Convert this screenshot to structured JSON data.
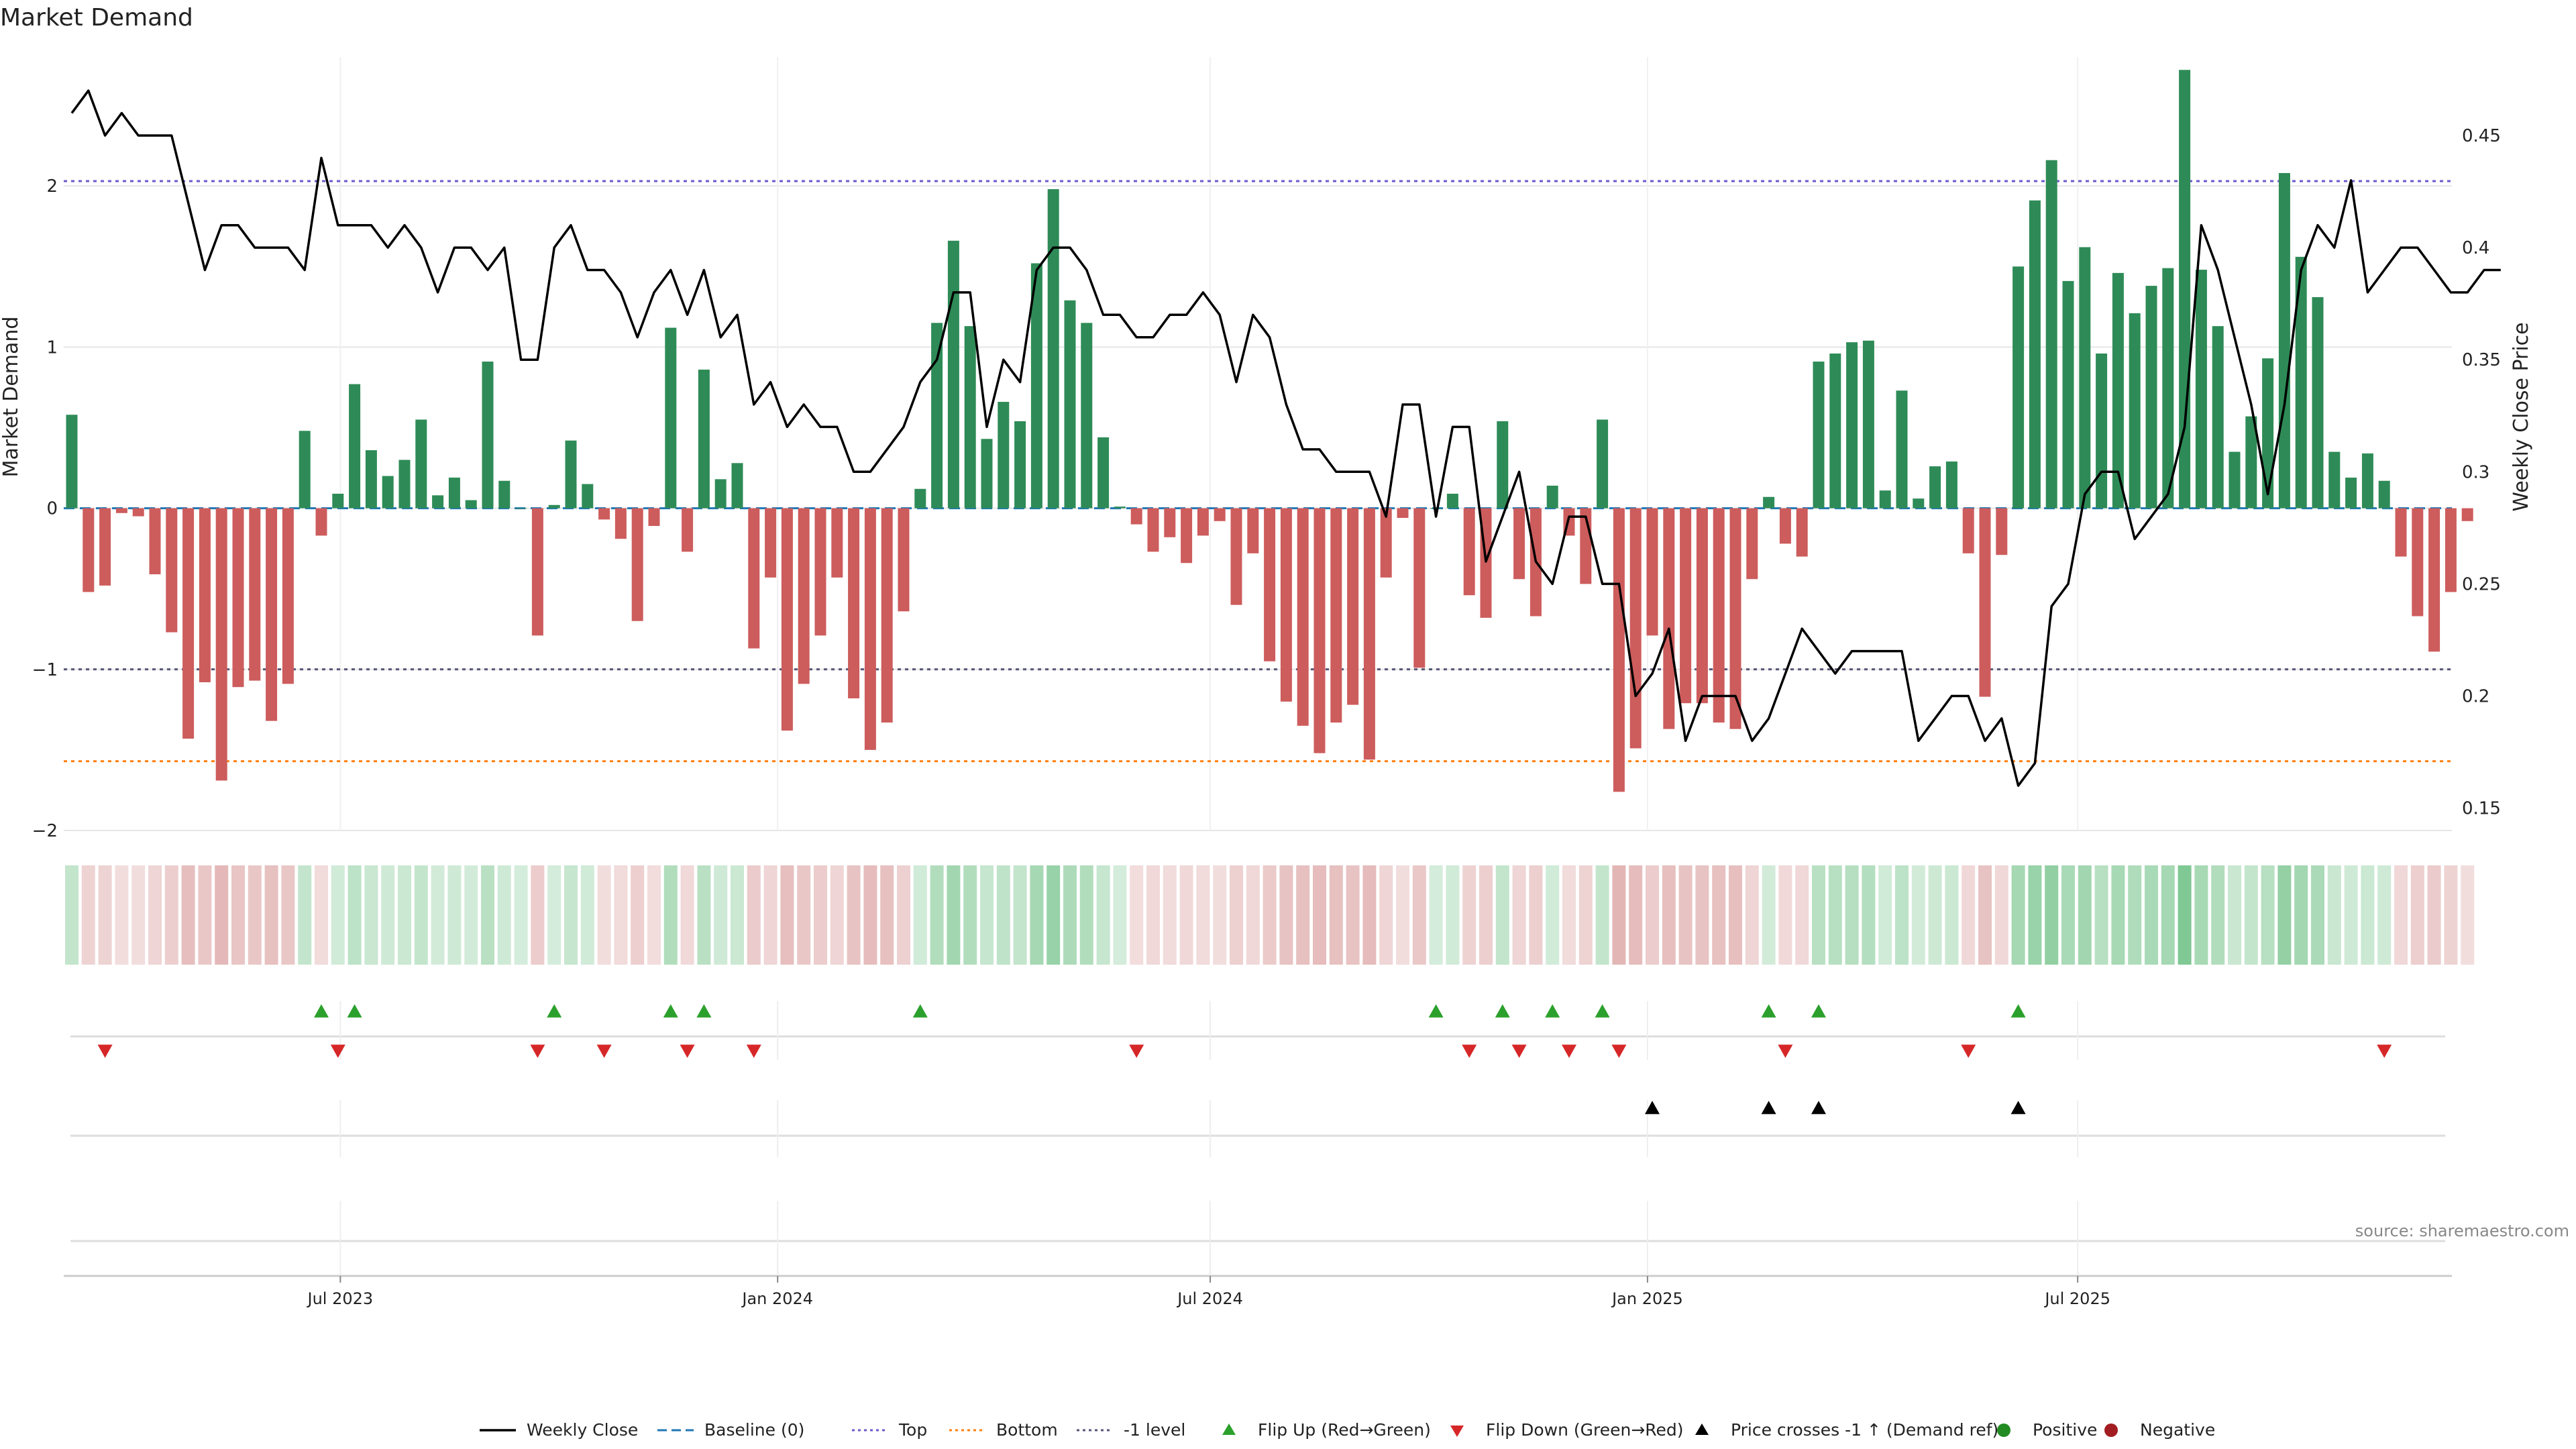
{
  "chart_data": {
    "type": "bar",
    "title": "Market Demand",
    "ylabel": "Market Demand",
    "y2label": "Weekly Close Price",
    "ylim": [
      -2.0,
      2.8
    ],
    "y2lim": [
      0.14,
      0.485
    ],
    "yticks": [
      -2,
      -1,
      0,
      1,
      2
    ],
    "y2ticks": [
      0.15,
      0.2,
      0.25,
      0.3,
      0.35,
      0.4,
      0.45
    ],
    "xstart": "2023-03-10",
    "week_days": 7,
    "xticks": [
      {
        "date": "2023-07-01",
        "label": "Jul 2023"
      },
      {
        "date": "2024-01-01",
        "label": "Jan 2024"
      },
      {
        "date": "2024-07-01",
        "label": "Jul 2024"
      },
      {
        "date": "2025-01-01",
        "label": "Jan 2025"
      },
      {
        "date": "2025-07-01",
        "label": "Jul 2025"
      }
    ],
    "levels": {
      "top": 2.03,
      "minus_one": -1.0,
      "bottom": -1.57,
      "baseline": 0
    },
    "demand": [
      0.58,
      -0.52,
      -0.48,
      -0.03,
      -0.05,
      -0.41,
      -0.77,
      -1.43,
      -1.08,
      -1.69,
      -1.11,
      -1.07,
      -1.32,
      -1.09,
      0.48,
      -0.17,
      0.09,
      0.77,
      0.36,
      0.2,
      0.3,
      0.55,
      0.08,
      0.19,
      0.05,
      0.91,
      0.17,
      0.0,
      -0.79,
      0.02,
      0.42,
      0.15,
      -0.07,
      -0.19,
      -0.7,
      -0.11,
      1.12,
      -0.27,
      0.86,
      0.18,
      0.28,
      -0.87,
      -0.43,
      -1.38,
      -1.09,
      -0.79,
      -0.43,
      -1.18,
      -1.5,
      -1.33,
      -0.64,
      0.12,
      1.15,
      1.66,
      1.13,
      0.43,
      0.66,
      0.54,
      1.52,
      1.98,
      1.29,
      1.15,
      0.44,
      0.01,
      -0.1,
      -0.27,
      -0.18,
      -0.34,
      -0.17,
      -0.08,
      -0.6,
      -0.28,
      -0.95,
      -1.2,
      -1.35,
      -1.52,
      -1.33,
      -1.22,
      -1.56,
      -0.43,
      -0.06,
      -0.99,
      0.0,
      0.09,
      -0.54,
      -0.68,
      0.54,
      -0.44,
      -0.67,
      0.14,
      -0.17,
      -0.47,
      0.55,
      -1.76,
      -1.49,
      -0.79,
      -1.37,
      -1.21,
      -1.21,
      -1.33,
      -1.37,
      -0.44,
      0.07,
      -0.22,
      -0.3,
      0.91,
      0.96,
      1.03,
      1.04,
      0.11,
      0.73,
      0.06,
      0.26,
      0.29,
      -0.28,
      -1.17,
      -0.29,
      1.5,
      1.91,
      2.16,
      1.41,
      1.62,
      0.96,
      1.46,
      1.21,
      1.38,
      1.49,
      2.72,
      1.48,
      1.13,
      0.35,
      0.57,
      0.93,
      2.08,
      1.56,
      1.31,
      0.35,
      0.19,
      0.34,
      0.17,
      -0.3,
      -0.67,
      -0.89,
      -0.52,
      -0.08
    ],
    "close": [
      0.46,
      0.47,
      0.45,
      0.46,
      0.45,
      0.45,
      0.45,
      0.42,
      0.39,
      0.41,
      0.41,
      0.4,
      0.4,
      0.4,
      0.39,
      0.44,
      0.41,
      0.41,
      0.41,
      0.4,
      0.41,
      0.4,
      0.38,
      0.4,
      0.4,
      0.39,
      0.4,
      0.35,
      0.35,
      0.4,
      0.41,
      0.39,
      0.39,
      0.38,
      0.36,
      0.38,
      0.39,
      0.37,
      0.39,
      0.36,
      0.37,
      0.33,
      0.34,
      0.32,
      0.33,
      0.32,
      0.32,
      0.3,
      0.3,
      0.31,
      0.32,
      0.34,
      0.35,
      0.38,
      0.38,
      0.32,
      0.35,
      0.34,
      0.39,
      0.4,
      0.4,
      0.39,
      0.37,
      0.37,
      0.36,
      0.36,
      0.37,
      0.37,
      0.38,
      0.37,
      0.34,
      0.37,
      0.36,
      0.33,
      0.31,
      0.31,
      0.3,
      0.3,
      0.3,
      0.28,
      0.33,
      0.33,
      0.28,
      0.32,
      0.32,
      0.26,
      0.28,
      0.3,
      0.26,
      0.25,
      0.28,
      0.28,
      0.25,
      0.25,
      0.2,
      0.21,
      0.23,
      0.18,
      0.2,
      0.2,
      0.2,
      0.18,
      0.19,
      0.21,
      0.23,
      0.22,
      0.21,
      0.22,
      0.22,
      0.22,
      0.22,
      0.18,
      0.19,
      0.2,
      0.2,
      0.18,
      0.19,
      0.16,
      0.17,
      0.24,
      0.25,
      0.29,
      0.3,
      0.3,
      0.27,
      0.28,
      0.29,
      0.32,
      0.41,
      0.39,
      0.36,
      0.33,
      0.29,
      0.33,
      0.39,
      0.41,
      0.4,
      0.43,
      0.38,
      0.39,
      0.4,
      0.4,
      0.39,
      0.38,
      0.38,
      0.39,
      0.39
    ],
    "flip_up_weeks": [
      15,
      17,
      29,
      36,
      38,
      51,
      82,
      86,
      89,
      92,
      102,
      105,
      117
    ],
    "flip_down_weeks": [
      2,
      16,
      28,
      32,
      37,
      41,
      64,
      84,
      87,
      90,
      93,
      103,
      114,
      139
    ],
    "price_cross_weeks": [
      95,
      102,
      105,
      117
    ],
    "legend": [
      {
        "label": "Weekly Close",
        "icon": "solid-line"
      },
      {
        "label": "Baseline (0)",
        "icon": "dashed-line"
      },
      {
        "label": "Top",
        "icon": "dotted-line"
      },
      {
        "label": "Bottom",
        "icon": "dotted-line"
      },
      {
        "label": "-1 level",
        "icon": "dotted-line"
      },
      {
        "label": "Flip Up (Red→Green)",
        "icon": "triangle-up"
      },
      {
        "label": "Flip Down (Green→Red)",
        "icon": "triangle-down"
      },
      {
        "label": "Price crosses -1 ↑ (Demand ref)",
        "icon": "triangle-up"
      },
      {
        "label": "Positive",
        "icon": "dot"
      },
      {
        "label": "Negative",
        "icon": "dot"
      }
    ],
    "source": "source: sharemaestro.com"
  },
  "colors": {
    "positive_bar": "#2e8b57",
    "negative_bar": "#cd5c5c",
    "close_line": "#000000",
    "baseline": "#1f77b4",
    "top": "#6a5acd",
    "bottom": "#ff7f0e",
    "minus_one": "#555577",
    "flip_up": "#2ca02c",
    "flip_down": "#d62728",
    "price_cross": "#000000",
    "positive_dot": "#228b22",
    "negative_dot": "#a11d21",
    "axis_text": "#222222",
    "grid": "#e6e6e6"
  }
}
